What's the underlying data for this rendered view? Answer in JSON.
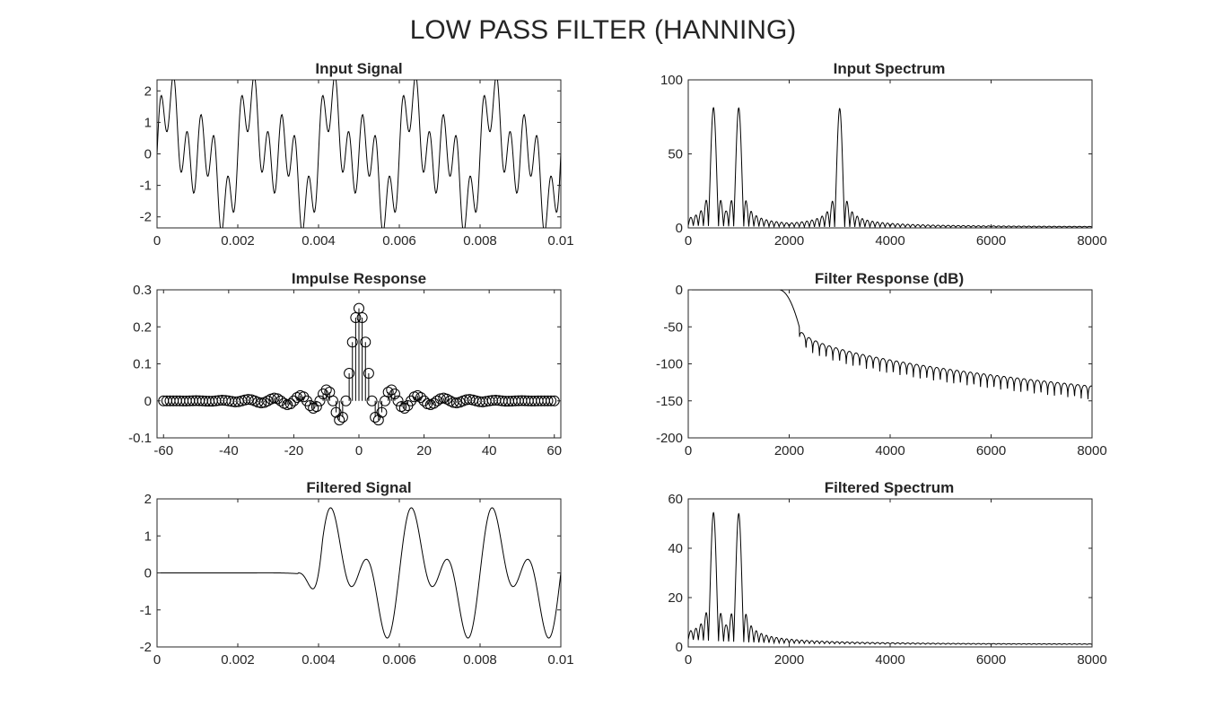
{
  "figure": {
    "title": "LOW PASS FILTER (HANNING)"
  },
  "chart_data": [
    {
      "id": "input-signal",
      "type": "line",
      "title": "Input Signal",
      "xlabel": "",
      "ylabel": "",
      "xlim": [
        0,
        0.01
      ],
      "ylim": [
        -2.35,
        2.35
      ],
      "xticks": [
        0,
        0.002,
        0.004,
        0.006,
        0.008,
        0.01
      ],
      "xtick_labels": [
        "0",
        "0.002",
        "0.004",
        "0.006",
        "0.008",
        "0.01"
      ],
      "yticks": [
        -2,
        -1,
        0,
        1,
        2
      ],
      "ytick_labels": [
        "-2",
        "-1",
        "0",
        "1",
        "2"
      ],
      "grid": false,
      "series": [
        {
          "generator": "sum_of_sines",
          "components": [
            {
              "freq_hz": 500,
              "amplitude": 1
            },
            {
              "freq_hz": 1000,
              "amplitude": 1
            },
            {
              "freq_hz": 3000,
              "amplitude": 1
            }
          ],
          "x_range": [
            0,
            0.01
          ],
          "sample_rate_hz": 16000
        }
      ]
    },
    {
      "id": "input-spectrum",
      "type": "line",
      "title": "Input Spectrum",
      "xlabel": "",
      "ylabel": "",
      "xlim": [
        0,
        8000
      ],
      "ylim": [
        0,
        100
      ],
      "xticks": [
        0,
        2000,
        4000,
        6000,
        8000
      ],
      "xtick_labels": [
        "0",
        "2000",
        "4000",
        "6000",
        "8000"
      ],
      "yticks": [
        0,
        50,
        100
      ],
      "ytick_labels": [
        "0",
        "50",
        "100"
      ],
      "grid": false,
      "series": [
        {
          "generator": "sinc_spectrum",
          "peaks": [
            {
              "freq_hz": 500,
              "magnitude": 80
            },
            {
              "freq_hz": 1000,
              "magnitude": 80
            },
            {
              "freq_hz": 3000,
              "magnitude": 80
            }
          ],
          "lobe_spacing_hz": 100,
          "floor": 0.5
        }
      ]
    },
    {
      "id": "impulse-response",
      "type": "scatter",
      "title": "Impulse Response",
      "xlabel": "",
      "ylabel": "",
      "xlim": [
        -62,
        62
      ],
      "ylim": [
        -0.1,
        0.3
      ],
      "xticks": [
        -60,
        -40,
        -20,
        0,
        20,
        40,
        60
      ],
      "xtick_labels": [
        "-60",
        "-40",
        "-20",
        "0",
        "20",
        "40",
        "60"
      ],
      "yticks": [
        -0.1,
        0,
        0.1,
        0.2,
        0.3
      ],
      "ytick_labels": [
        "-0.1",
        "0",
        "0.1",
        "0.2",
        "0.3"
      ],
      "grid": false,
      "series": [
        {
          "generator": "windowed_sinc_stem",
          "cutoff_fraction": 0.25,
          "n_range": [
            -60,
            60
          ],
          "window": "hanning",
          "center_value": 0.25
        }
      ]
    },
    {
      "id": "filter-response",
      "type": "line",
      "title": "Filter Response (dB)",
      "xlabel": "",
      "ylabel": "",
      "xlim": [
        0,
        8000
      ],
      "ylim": [
        -200,
        0
      ],
      "xticks": [
        0,
        2000,
        4000,
        6000,
        8000
      ],
      "xtick_labels": [
        "0",
        "2000",
        "4000",
        "6000",
        "8000"
      ],
      "yticks": [
        -200,
        -150,
        -100,
        -50,
        0
      ],
      "ytick_labels": [
        "-200",
        "-150",
        "-100",
        "-50",
        "0"
      ],
      "grid": false,
      "series": [
        {
          "generator": "lowpass_db",
          "passband_edge_hz": 1800,
          "stopband_start_hz": 2200,
          "stopband_start_db": -50,
          "stopband_end_db": -130,
          "lobe_spacing_hz": 133
        }
      ]
    },
    {
      "id": "filtered-signal",
      "type": "line",
      "title": "Filtered Signal",
      "xlabel": "",
      "ylabel": "",
      "xlim": [
        0,
        0.01
      ],
      "ylim": [
        -2,
        2
      ],
      "xticks": [
        0,
        0.002,
        0.004,
        0.006,
        0.008,
        0.01
      ],
      "xtick_labels": [
        "0",
        "0.002",
        "0.004",
        "0.006",
        "0.008",
        "0.01"
      ],
      "yticks": [
        -2,
        -1,
        0,
        1,
        2
      ],
      "ytick_labels": [
        "-2",
        "-1",
        "0",
        "1",
        "2"
      ],
      "grid": false,
      "series": [
        {
          "generator": "delayed_sum_of_sines",
          "components": [
            {
              "freq_hz": 500,
              "amplitude": 1
            },
            {
              "freq_hz": 1000,
              "amplitude": 1
            }
          ],
          "delay_s": 0.0035,
          "x_range": [
            0,
            0.01
          ],
          "sample_rate_hz": 16000
        }
      ]
    },
    {
      "id": "filtered-spectrum",
      "type": "line",
      "title": "Filtered Spectrum",
      "xlabel": "",
      "ylabel": "",
      "xlim": [
        0,
        8000
      ],
      "ylim": [
        0,
        60
      ],
      "xticks": [
        0,
        2000,
        4000,
        6000,
        8000
      ],
      "xtick_labels": [
        "0",
        "2000",
        "4000",
        "6000",
        "8000"
      ],
      "yticks": [
        0,
        20,
        40,
        60
      ],
      "ytick_labels": [
        "0",
        "20",
        "40",
        "60"
      ],
      "grid": false,
      "series": [
        {
          "generator": "sinc_spectrum",
          "peaks": [
            {
              "freq_hz": 500,
              "magnitude": 52
            },
            {
              "freq_hz": 1000,
              "magnitude": 52
            }
          ],
          "lobe_spacing_hz": 100,
          "floor": 1
        }
      ]
    }
  ]
}
